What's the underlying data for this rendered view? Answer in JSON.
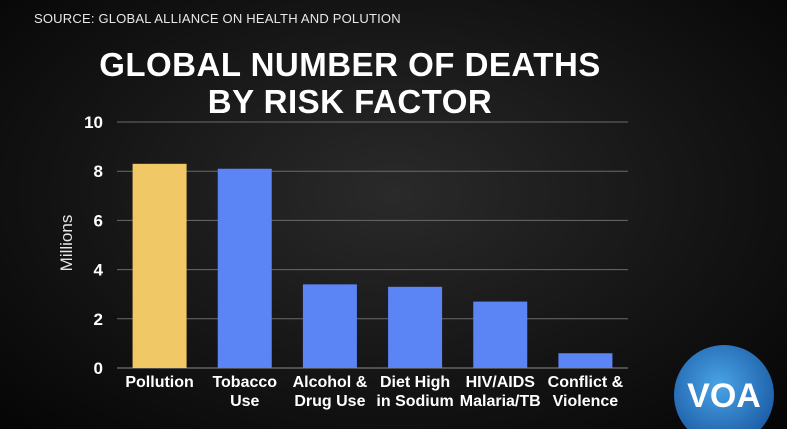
{
  "source": "SOURCE: GLOBAL ALLIANCE ON HEALTH AND POLUTION",
  "logo_text": "VOA",
  "chart_data": {
    "type": "bar",
    "title": [
      "GLOBAL NUMBER OF DEATHS",
      "BY RISK FACTOR"
    ],
    "ylabel": "Millions",
    "xlabel": "",
    "ylim": [
      0,
      10
    ],
    "yticks": [
      0,
      2,
      4,
      6,
      8,
      10
    ],
    "grid": true,
    "categories": [
      [
        "Pollution"
      ],
      [
        "Tobacco",
        "Use"
      ],
      [
        "Alcohol &",
        "Drug Use"
      ],
      [
        "Diet High",
        "in Sodium"
      ],
      [
        "HIV/AIDS",
        "Malaria/TB"
      ],
      [
        "Conflict &",
        "Violence"
      ]
    ],
    "values": [
      8.3,
      8.1,
      3.4,
      3.3,
      2.7,
      0.6
    ],
    "colors": [
      "#f0c866",
      "#5b84f5",
      "#5b84f5",
      "#5b84f5",
      "#5b84f5",
      "#5b84f5"
    ]
  }
}
